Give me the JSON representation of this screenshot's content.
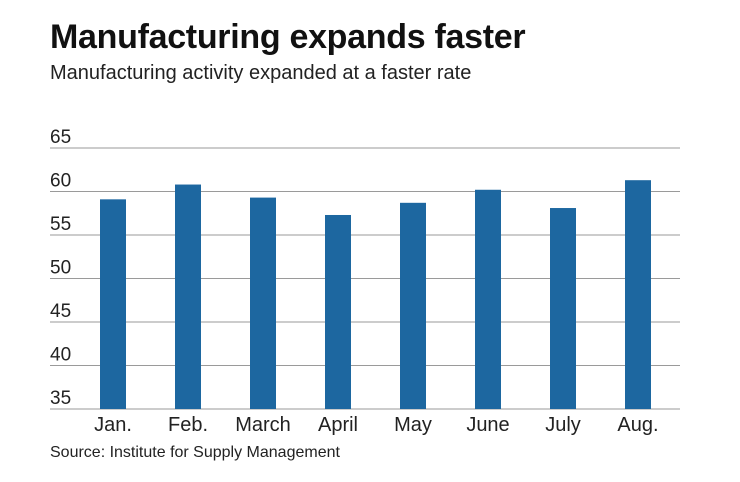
{
  "chart_data": {
    "type": "bar",
    "title": "Manufacturing expands faster",
    "subtitle": "Manufacturing activity expanded at a faster rate",
    "source": "Source: Institute for Supply Management",
    "categories": [
      "Jan.",
      "Feb.",
      "March",
      "April",
      "May",
      "June",
      "July",
      "Aug."
    ],
    "values": [
      59.1,
      60.8,
      59.3,
      57.3,
      58.7,
      60.2,
      58.1,
      61.3
    ],
    "ylim": [
      35,
      65
    ],
    "yticks": [
      35,
      40,
      45,
      50,
      55,
      60,
      65
    ],
    "xlabel": "",
    "ylabel": "",
    "grid": true,
    "colors": {
      "bar": "#1d67a0",
      "grid": "#9a9a9a"
    }
  }
}
